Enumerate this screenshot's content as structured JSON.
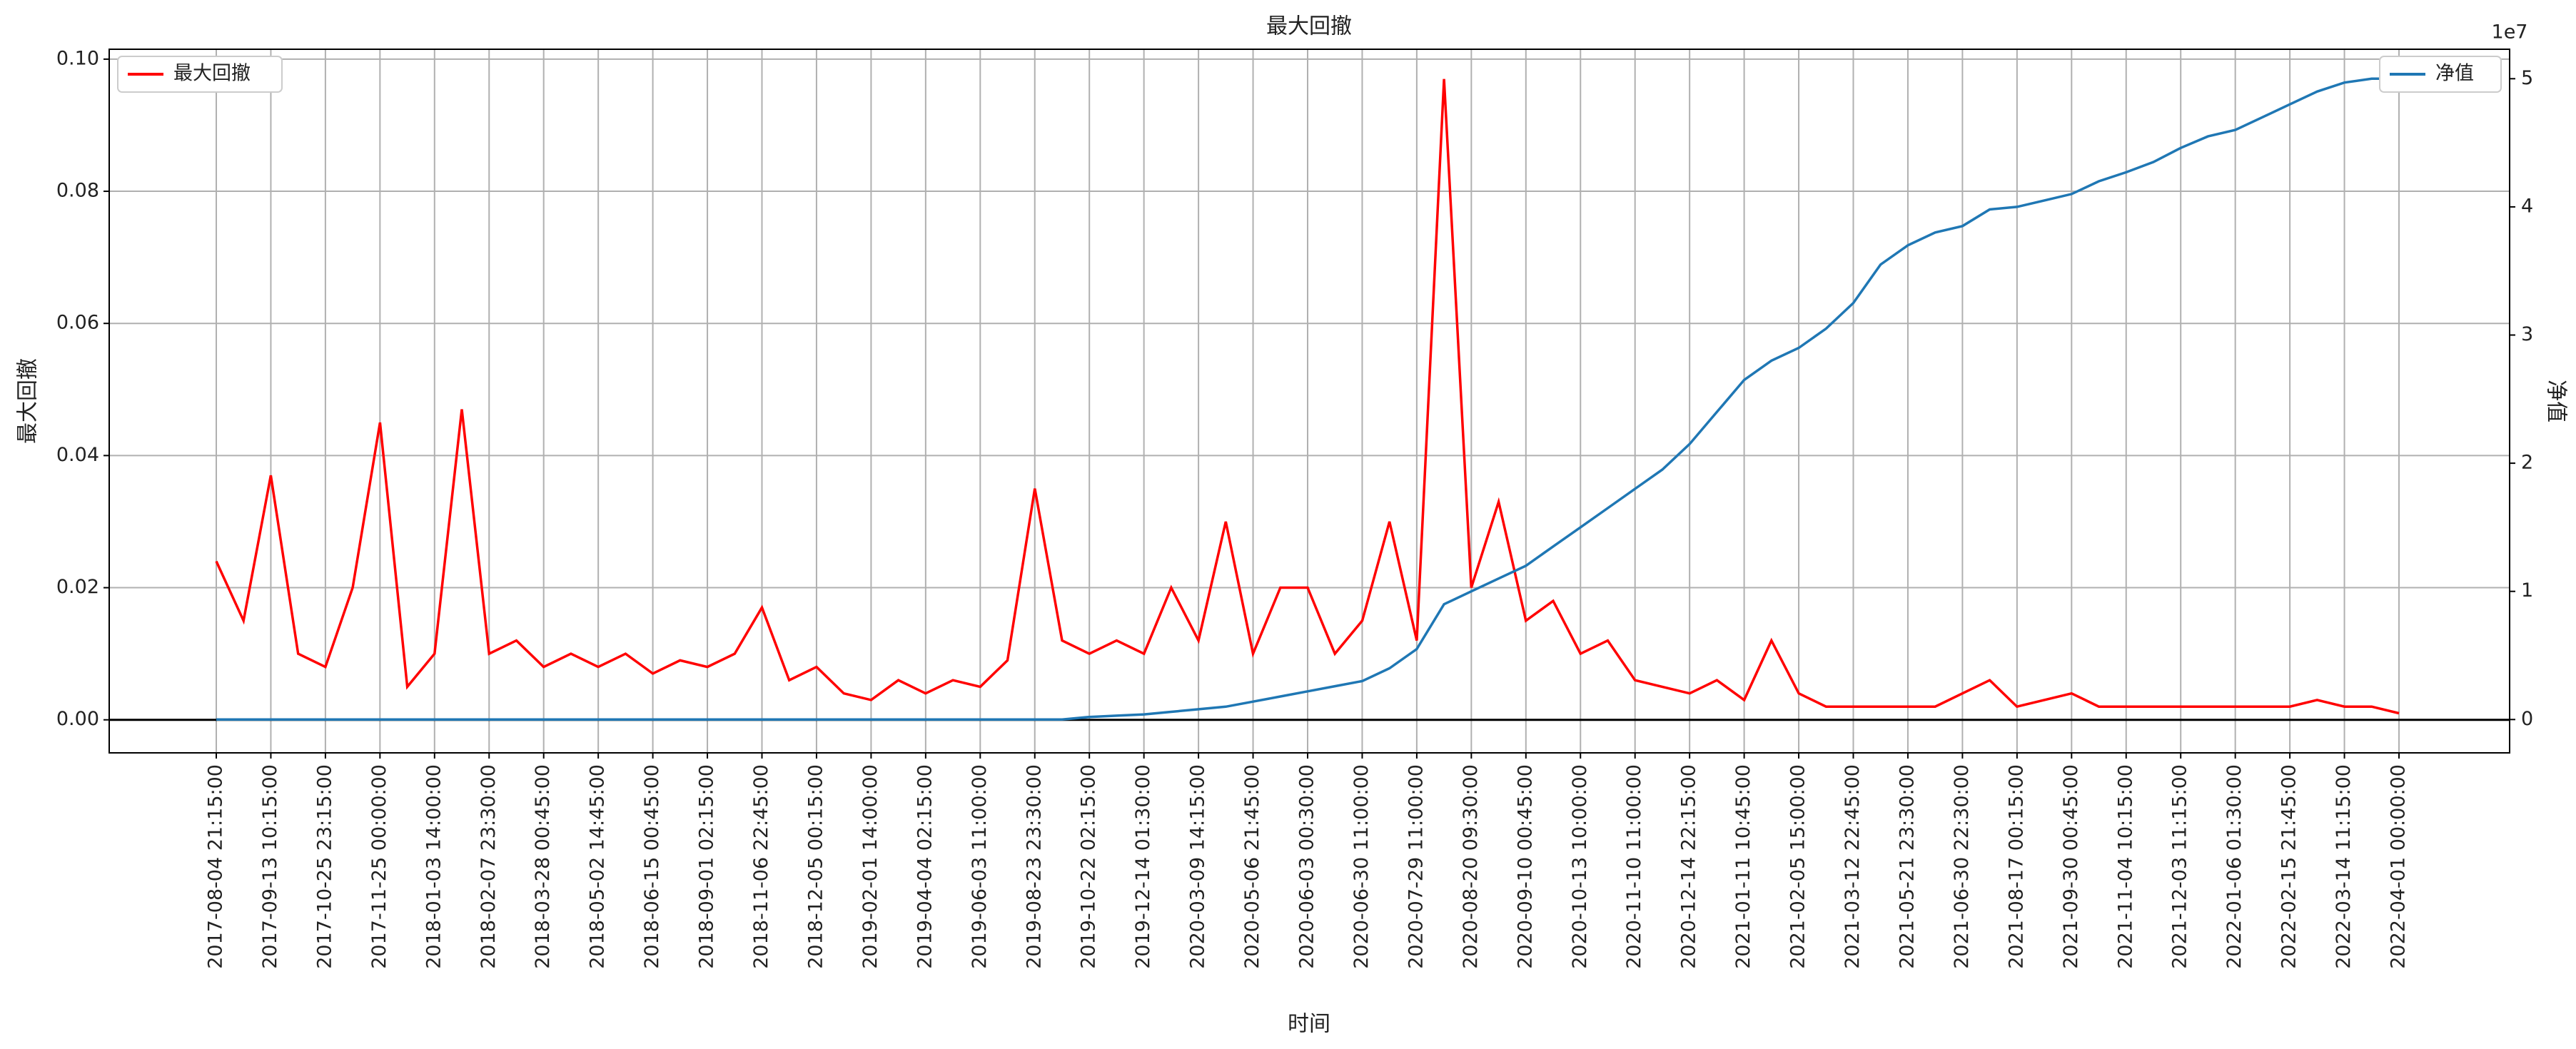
{
  "chart_data": {
    "type": "line",
    "title": "最大回撤",
    "xlabel": "时间",
    "ylabel": "最大回撤",
    "y2label": "净值",
    "y2_offset_label": "1e7",
    "categories": [
      "2017-08-04 21:15:00",
      null,
      "2017-09-13 10:15:00",
      null,
      "2017-10-25 23:15:00",
      null,
      "2017-11-25 00:00:00",
      null,
      "2018-01-03 14:00:00",
      null,
      "2018-02-07 23:30:00",
      null,
      "2018-03-28 00:45:00",
      null,
      "2018-05-02 14:45:00",
      null,
      "2018-06-15 00:45:00",
      null,
      "2018-09-01 02:15:00",
      null,
      "2018-11-06 22:45:00",
      null,
      "2018-12-05 00:15:00",
      null,
      "2019-02-01 14:00:00",
      null,
      "2019-04-04 02:15:00",
      null,
      "2019-06-03 11:00:00",
      null,
      "2019-08-23 23:30:00",
      null,
      "2019-10-22 02:15:00",
      null,
      "2019-12-14 01:30:00",
      null,
      "2020-03-09 14:15:00",
      null,
      "2020-05-06 21:45:00",
      null,
      "2020-06-03 00:30:00",
      null,
      "2020-06-30 11:00:00",
      null,
      "2020-07-29 11:00:00",
      null,
      "2020-08-20 09:30:00",
      null,
      "2020-09-10 00:45:00",
      null,
      "2020-10-13 10:00:00",
      null,
      "2020-11-10 11:00:00",
      null,
      "2020-12-14 22:15:00",
      null,
      "2021-01-11 10:45:00",
      null,
      "2021-02-05 15:00:00",
      null,
      "2021-03-12 22:45:00",
      null,
      "2021-05-21 23:30:00",
      null,
      "2021-06-30 22:30:00",
      null,
      "2021-08-17 00:15:00",
      null,
      "2021-09-30 00:45:00",
      null,
      "2021-11-04 10:15:00",
      null,
      "2021-12-03 11:15:00",
      null,
      "2022-01-06 01:30:00",
      null,
      "2022-02-15 21:45:00",
      null,
      "2022-03-14 11:15:00",
      null,
      "2022-04-01 00:00:00"
    ],
    "series": [
      {
        "name": "最大回撤",
        "color": "#ff0000",
        "axis": "y",
        "legend": "upper left",
        "values": [
          0.024,
          0.015,
          0.037,
          0.01,
          0.008,
          0.02,
          0.045,
          0.005,
          0.01,
          0.047,
          0.01,
          0.012,
          0.008,
          0.01,
          0.008,
          0.01,
          0.007,
          0.009,
          0.008,
          0.01,
          0.017,
          0.006,
          0.008,
          0.004,
          0.003,
          0.006,
          0.004,
          0.006,
          0.005,
          0.009,
          0.035,
          0.012,
          0.01,
          0.012,
          0.01,
          0.02,
          0.012,
          0.03,
          0.01,
          0.02,
          0.02,
          0.01,
          0.015,
          0.03,
          0.012,
          0.097,
          0.02,
          0.033,
          0.015,
          0.018,
          0.01,
          0.012,
          0.006,
          0.005,
          0.004,
          0.006,
          0.003,
          0.012,
          0.004,
          0.002,
          0.002,
          0.002,
          0.002,
          0.002,
          0.004,
          0.006,
          0.002,
          0.003,
          0.004,
          0.002,
          0.002,
          0.002,
          0.002,
          0.002,
          0.002,
          0.002,
          0.002,
          0.003,
          0.002,
          0.002,
          0.001
        ]
      },
      {
        "name": "净值",
        "color": "#1f77b4",
        "axis": "y2",
        "legend": "upper right",
        "values": [
          0,
          0,
          0,
          0,
          0,
          0,
          0,
          0,
          0,
          0,
          0,
          0,
          0,
          0,
          0,
          0,
          0,
          0,
          0,
          0,
          0,
          0,
          0,
          0,
          0,
          0,
          0,
          0,
          0,
          0,
          0,
          0,
          0.02,
          0.03,
          0.04,
          0.06,
          0.08,
          0.1,
          0.14,
          0.18,
          0.22,
          0.26,
          0.3,
          0.4,
          0.55,
          0.9,
          1.0,
          1.1,
          1.2,
          1.35,
          1.5,
          1.65,
          1.8,
          1.95,
          2.15,
          2.4,
          2.65,
          2.8,
          2.9,
          3.05,
          3.25,
          3.55,
          3.7,
          3.8,
          3.85,
          3.98,
          4.0,
          4.05,
          4.1,
          4.2,
          4.27,
          4.35,
          4.46,
          4.55,
          4.6,
          4.7,
          4.8,
          4.9,
          4.97,
          5.0,
          5.0
        ]
      }
    ],
    "ylim": [
      -0.005,
      0.1015
    ],
    "yticks": [
      {
        "value": 0,
        "label": "0.00"
      },
      {
        "value": 0.02,
        "label": "0.02"
      },
      {
        "value": 0.04,
        "label": "0.04"
      },
      {
        "value": 0.06,
        "label": "0.06"
      },
      {
        "value": 0.08,
        "label": "0.08"
      },
      {
        "value": 0.1,
        "label": "0.10"
      }
    ],
    "y2lim": [
      -0.26,
      5.23
    ],
    "y2ticks": [
      0,
      1,
      2,
      3,
      4,
      5
    ],
    "grid": true
  }
}
